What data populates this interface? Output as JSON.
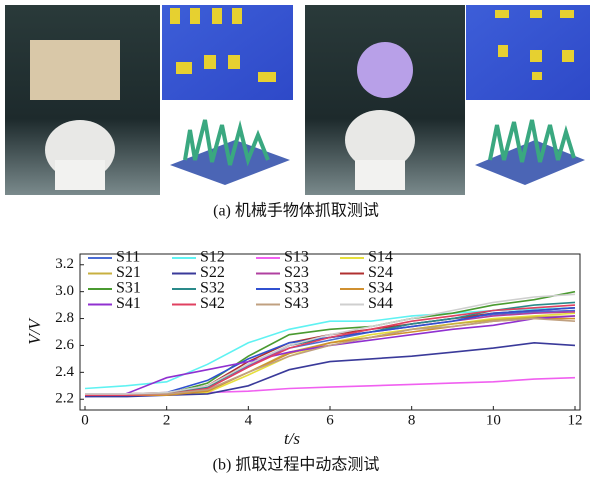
{
  "figure_a": {
    "caption": "(a)  机械手物体抓取测试"
  },
  "chart_data": {
    "type": "line",
    "caption": "(b)  抓取过程中动态测试",
    "xlabel": "t/s",
    "ylabel": "V/V",
    "x": [
      0,
      1,
      2,
      3,
      4,
      5,
      6,
      7,
      8,
      9,
      10,
      11,
      12
    ],
    "xlim": [
      0,
      12
    ],
    "xticks": [
      0,
      2,
      4,
      6,
      8,
      10,
      12
    ],
    "ylim": [
      2.12,
      3.28
    ],
    "yticks": [
      2.2,
      2.4,
      2.6,
      2.8,
      {
        "value": 3,
        "label": "3.0"
      },
      3.2
    ],
    "series": [
      {
        "name": "S11",
        "color": "#4a6cd4",
        "values": [
          2.23,
          2.23,
          2.24,
          2.3,
          2.45,
          2.58,
          2.64,
          2.7,
          2.76,
          2.8,
          2.83,
          2.85,
          2.86
        ]
      },
      {
        "name": "S12",
        "color": "#5ff2f2",
        "values": [
          2.28,
          2.3,
          2.33,
          2.46,
          2.62,
          2.72,
          2.78,
          2.78,
          2.82,
          2.84,
          2.86,
          2.87,
          2.88
        ]
      },
      {
        "name": "S13",
        "color": "#f060f0",
        "values": [
          2.22,
          2.23,
          2.24,
          2.25,
          2.26,
          2.28,
          2.29,
          2.3,
          2.31,
          2.32,
          2.33,
          2.35,
          2.36
        ]
      },
      {
        "name": "S14",
        "color": "#e6df3c",
        "values": [
          2.23,
          2.23,
          2.23,
          2.25,
          2.38,
          2.52,
          2.62,
          2.68,
          2.72,
          2.76,
          2.8,
          2.82,
          2.84
        ]
      },
      {
        "name": "S21",
        "color": "#c8b040",
        "values": [
          2.24,
          2.24,
          2.24,
          2.27,
          2.4,
          2.55,
          2.62,
          2.66,
          2.72,
          2.76,
          2.79,
          2.81,
          2.82
        ]
      },
      {
        "name": "S22",
        "color": "#3a3a9a",
        "values": [
          2.22,
          2.22,
          2.23,
          2.24,
          2.3,
          2.42,
          2.48,
          2.5,
          2.52,
          2.55,
          2.58,
          2.62,
          2.6
        ]
      },
      {
        "name": "S23",
        "color": "#b040a0",
        "values": [
          2.23,
          2.23,
          2.24,
          2.28,
          2.44,
          2.6,
          2.66,
          2.7,
          2.74,
          2.78,
          2.82,
          2.84,
          2.85
        ]
      },
      {
        "name": "S24",
        "color": "#b03030",
        "values": [
          2.24,
          2.24,
          2.25,
          2.3,
          2.48,
          2.62,
          2.68,
          2.72,
          2.76,
          2.8,
          2.84,
          2.86,
          2.88
        ]
      },
      {
        "name": "S31",
        "color": "#4a9a30",
        "values": [
          2.23,
          2.23,
          2.24,
          2.32,
          2.52,
          2.68,
          2.72,
          2.74,
          2.8,
          2.84,
          2.9,
          2.94,
          3.0
        ]
      },
      {
        "name": "S32",
        "color": "#2a8a8a",
        "values": [
          2.24,
          2.24,
          2.24,
          2.29,
          2.46,
          2.6,
          2.66,
          2.7,
          2.76,
          2.8,
          2.86,
          2.9,
          2.92
        ]
      },
      {
        "name": "S33",
        "color": "#3050d0",
        "values": [
          2.23,
          2.23,
          2.25,
          2.34,
          2.5,
          2.62,
          2.66,
          2.7,
          2.74,
          2.78,
          2.84,
          2.86,
          2.88
        ]
      },
      {
        "name": "S34",
        "color": "#d09030",
        "values": [
          2.23,
          2.23,
          2.23,
          2.26,
          2.4,
          2.54,
          2.62,
          2.66,
          2.7,
          2.74,
          2.78,
          2.8,
          2.8
        ]
      },
      {
        "name": "S41",
        "color": "#9030d0",
        "values": [
          2.24,
          2.24,
          2.36,
          2.42,
          2.48,
          2.55,
          2.6,
          2.64,
          2.68,
          2.72,
          2.75,
          2.8,
          2.82
        ]
      },
      {
        "name": "S42",
        "color": "#e04060",
        "values": [
          2.23,
          2.23,
          2.24,
          2.28,
          2.44,
          2.58,
          2.66,
          2.72,
          2.78,
          2.82,
          2.86,
          2.88,
          2.9
        ]
      },
      {
        "name": "S43",
        "color": "#c0a080",
        "values": [
          2.24,
          2.24,
          2.24,
          2.27,
          2.4,
          2.52,
          2.6,
          2.66,
          2.72,
          2.74,
          2.78,
          2.8,
          2.78
        ]
      },
      {
        "name": "S44",
        "color": "#cfcfcf",
        "values": [
          2.24,
          2.24,
          2.25,
          2.3,
          2.46,
          2.6,
          2.68,
          2.74,
          2.8,
          2.86,
          2.92,
          2.96,
          2.98
        ]
      }
    ]
  }
}
